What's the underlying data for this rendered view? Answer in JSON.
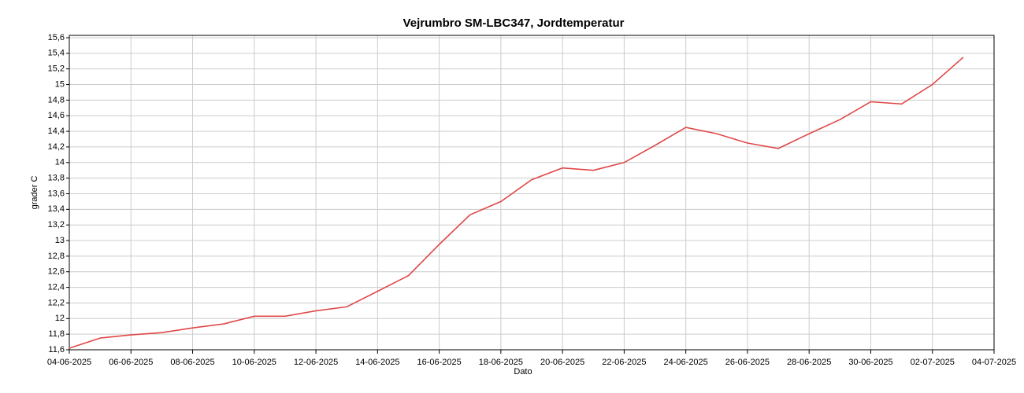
{
  "chart_data": {
    "type": "line",
    "title": "Vejrumbro SM-LBC347, Jordtemperatur",
    "x_label": "Dato",
    "y_label": "grader C",
    "x": [
      "04-06-2025",
      "05-06-2025",
      "06-06-2025",
      "07-06-2025",
      "08-06-2025",
      "09-06-2025",
      "10-06-2025",
      "11-06-2025",
      "12-06-2025",
      "13-06-2025",
      "14-06-2025",
      "15-06-2025",
      "16-06-2025",
      "17-06-2025",
      "18-06-2025",
      "19-06-2025",
      "20-06-2025",
      "21-06-2025",
      "22-06-2025",
      "23-06-2025",
      "24-06-2025",
      "25-06-2025",
      "26-06-2025",
      "27-06-2025",
      "28-06-2025",
      "29-06-2025",
      "30-06-2025",
      "01-07-2025",
      "02-07-2025",
      "03-07-2025"
    ],
    "series": [
      {
        "name": "Jordtemperatur",
        "color": "#e04848",
        "values": [
          11.62,
          11.75,
          11.79,
          11.82,
          11.88,
          11.93,
          12.03,
          12.03,
          12.1,
          12.15,
          12.35,
          12.55,
          12.95,
          13.33,
          13.5,
          13.78,
          13.93,
          13.9,
          14.0,
          14.22,
          14.45,
          14.37,
          14.25,
          14.18,
          14.37,
          14.55,
          14.78,
          14.75,
          15.0,
          15.35
        ]
      }
    ],
    "xlim": [
      "04-06-2025",
      "04-07-2025"
    ],
    "xticks": [
      "04-06-2025",
      "06-06-2025",
      "08-06-2025",
      "10-06-2025",
      "12-06-2025",
      "14-06-2025",
      "16-06-2025",
      "18-06-2025",
      "20-06-2025",
      "22-06-2025",
      "24-06-2025",
      "26-06-2025",
      "28-06-2025",
      "30-06-2025",
      "02-07-2025",
      "04-07-2025"
    ],
    "ylim": [
      11.6,
      15.63
    ],
    "yticks": [
      {
        "value": 11.6,
        "label": "11,6"
      },
      {
        "value": 11.8,
        "label": "11,8"
      },
      12,
      {
        "value": 12.2,
        "label": "12,2"
      },
      {
        "value": 12.4,
        "label": "12,4"
      },
      {
        "value": 12.6,
        "label": "12,6"
      },
      {
        "value": 12.8,
        "label": "12,8"
      },
      13,
      {
        "value": 13.2,
        "label": "13,2"
      },
      {
        "value": 13.4,
        "label": "13,4"
      },
      {
        "value": 13.6,
        "label": "13,6"
      },
      {
        "value": 13.8,
        "label": "13,8"
      },
      14,
      {
        "value": 14.2,
        "label": "14,2"
      },
      {
        "value": 14.4,
        "label": "14,4"
      },
      {
        "value": 14.6,
        "label": "14,6"
      },
      {
        "value": 14.8,
        "label": "14,8"
      },
      15,
      {
        "value": 15.2,
        "label": "15,2"
      },
      {
        "value": 15.4,
        "label": "15,4"
      },
      {
        "value": 15.6,
        "label": "15,6"
      }
    ],
    "grid": true
  }
}
